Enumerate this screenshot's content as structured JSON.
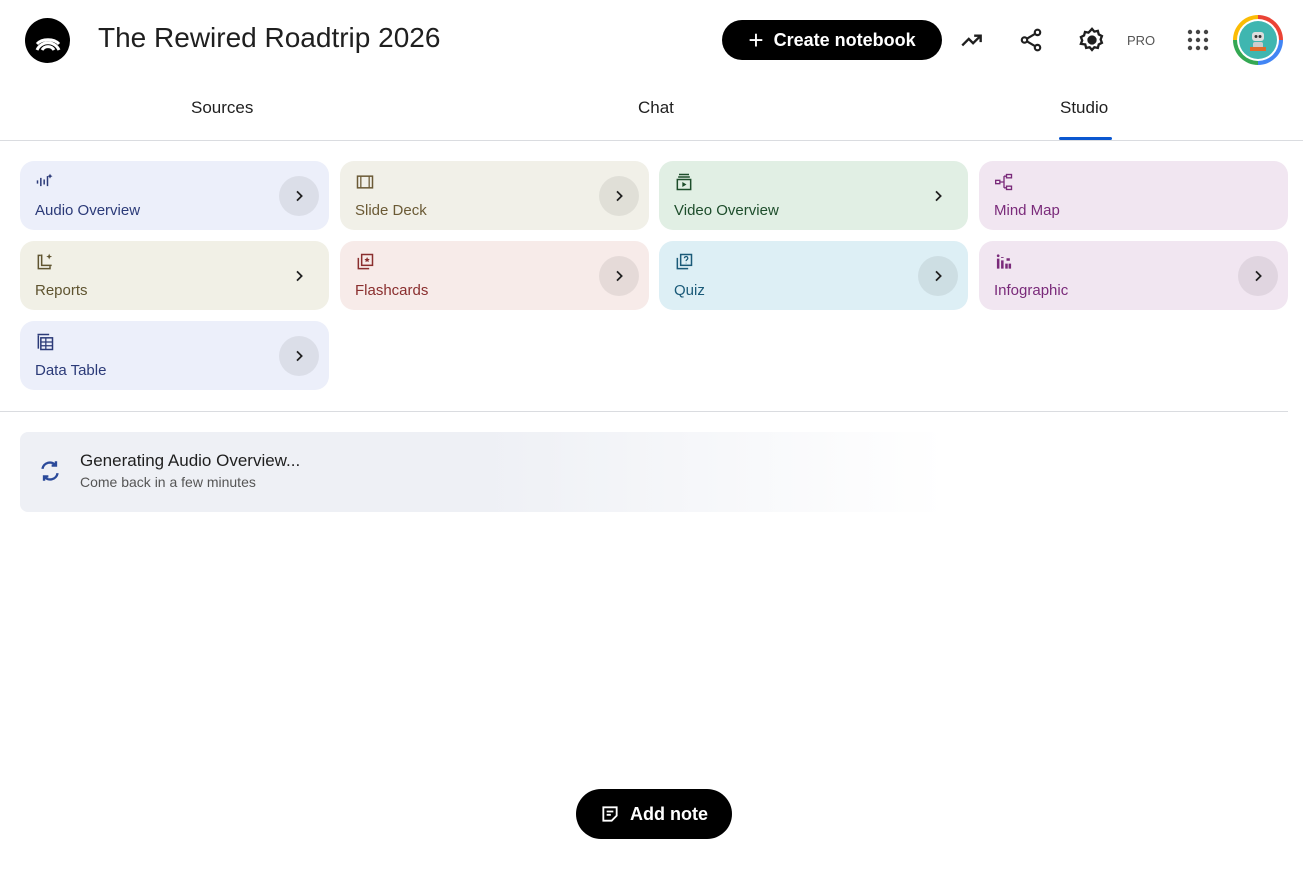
{
  "header": {
    "title": "The Rewired Roadtrip 2026",
    "create_label": "Create notebook",
    "pro_label": "PRO",
    "icons": [
      "analytics-icon",
      "share-icon",
      "gear-icon",
      "apps-grid-icon"
    ]
  },
  "tabs": [
    {
      "label": "Sources"
    },
    {
      "label": "Chat"
    },
    {
      "label": "Studio",
      "selected": true
    }
  ],
  "studio": {
    "cards": [
      {
        "label": "Audio Overview",
        "icon": "audio-waveform-icon",
        "bg": "#eceffa",
        "color": "#2b3a78"
      },
      {
        "label": "Slide Deck",
        "icon": "slides-icon",
        "bg": "#f1f0e8",
        "color": "#6b5a35"
      },
      {
        "label": "Video Overview",
        "icon": "video-icon",
        "bg": "#e1efe4",
        "color": "#1d4d2b"
      },
      {
        "label": "Mind Map",
        "icon": "mind-map-icon",
        "bg": "#f1e6f1",
        "color": "#7a2a7a"
      },
      {
        "label": "Reports",
        "icon": "reports-icon",
        "bg": "#f1f0e6",
        "color": "#5f5430"
      },
      {
        "label": "Flashcards",
        "icon": "flashcards-icon",
        "bg": "#f7ebe9",
        "color": "#8a2e2e"
      },
      {
        "label": "Quiz",
        "icon": "quiz-icon",
        "bg": "#ddeff5",
        "color": "#1a5a78"
      },
      {
        "label": "Infographic",
        "icon": "infographic-icon",
        "bg": "#f1e6f1",
        "color": "#7a2a7a"
      },
      {
        "label": "Data Table",
        "icon": "data-table-icon",
        "bg": "#eceffa",
        "color": "#2b3a78"
      }
    ],
    "generating": {
      "title": "Generating Audio Overview...",
      "subtitle": "Come back in a few minutes"
    }
  },
  "add_note_label": "Add note",
  "accent": "#0b57d0"
}
